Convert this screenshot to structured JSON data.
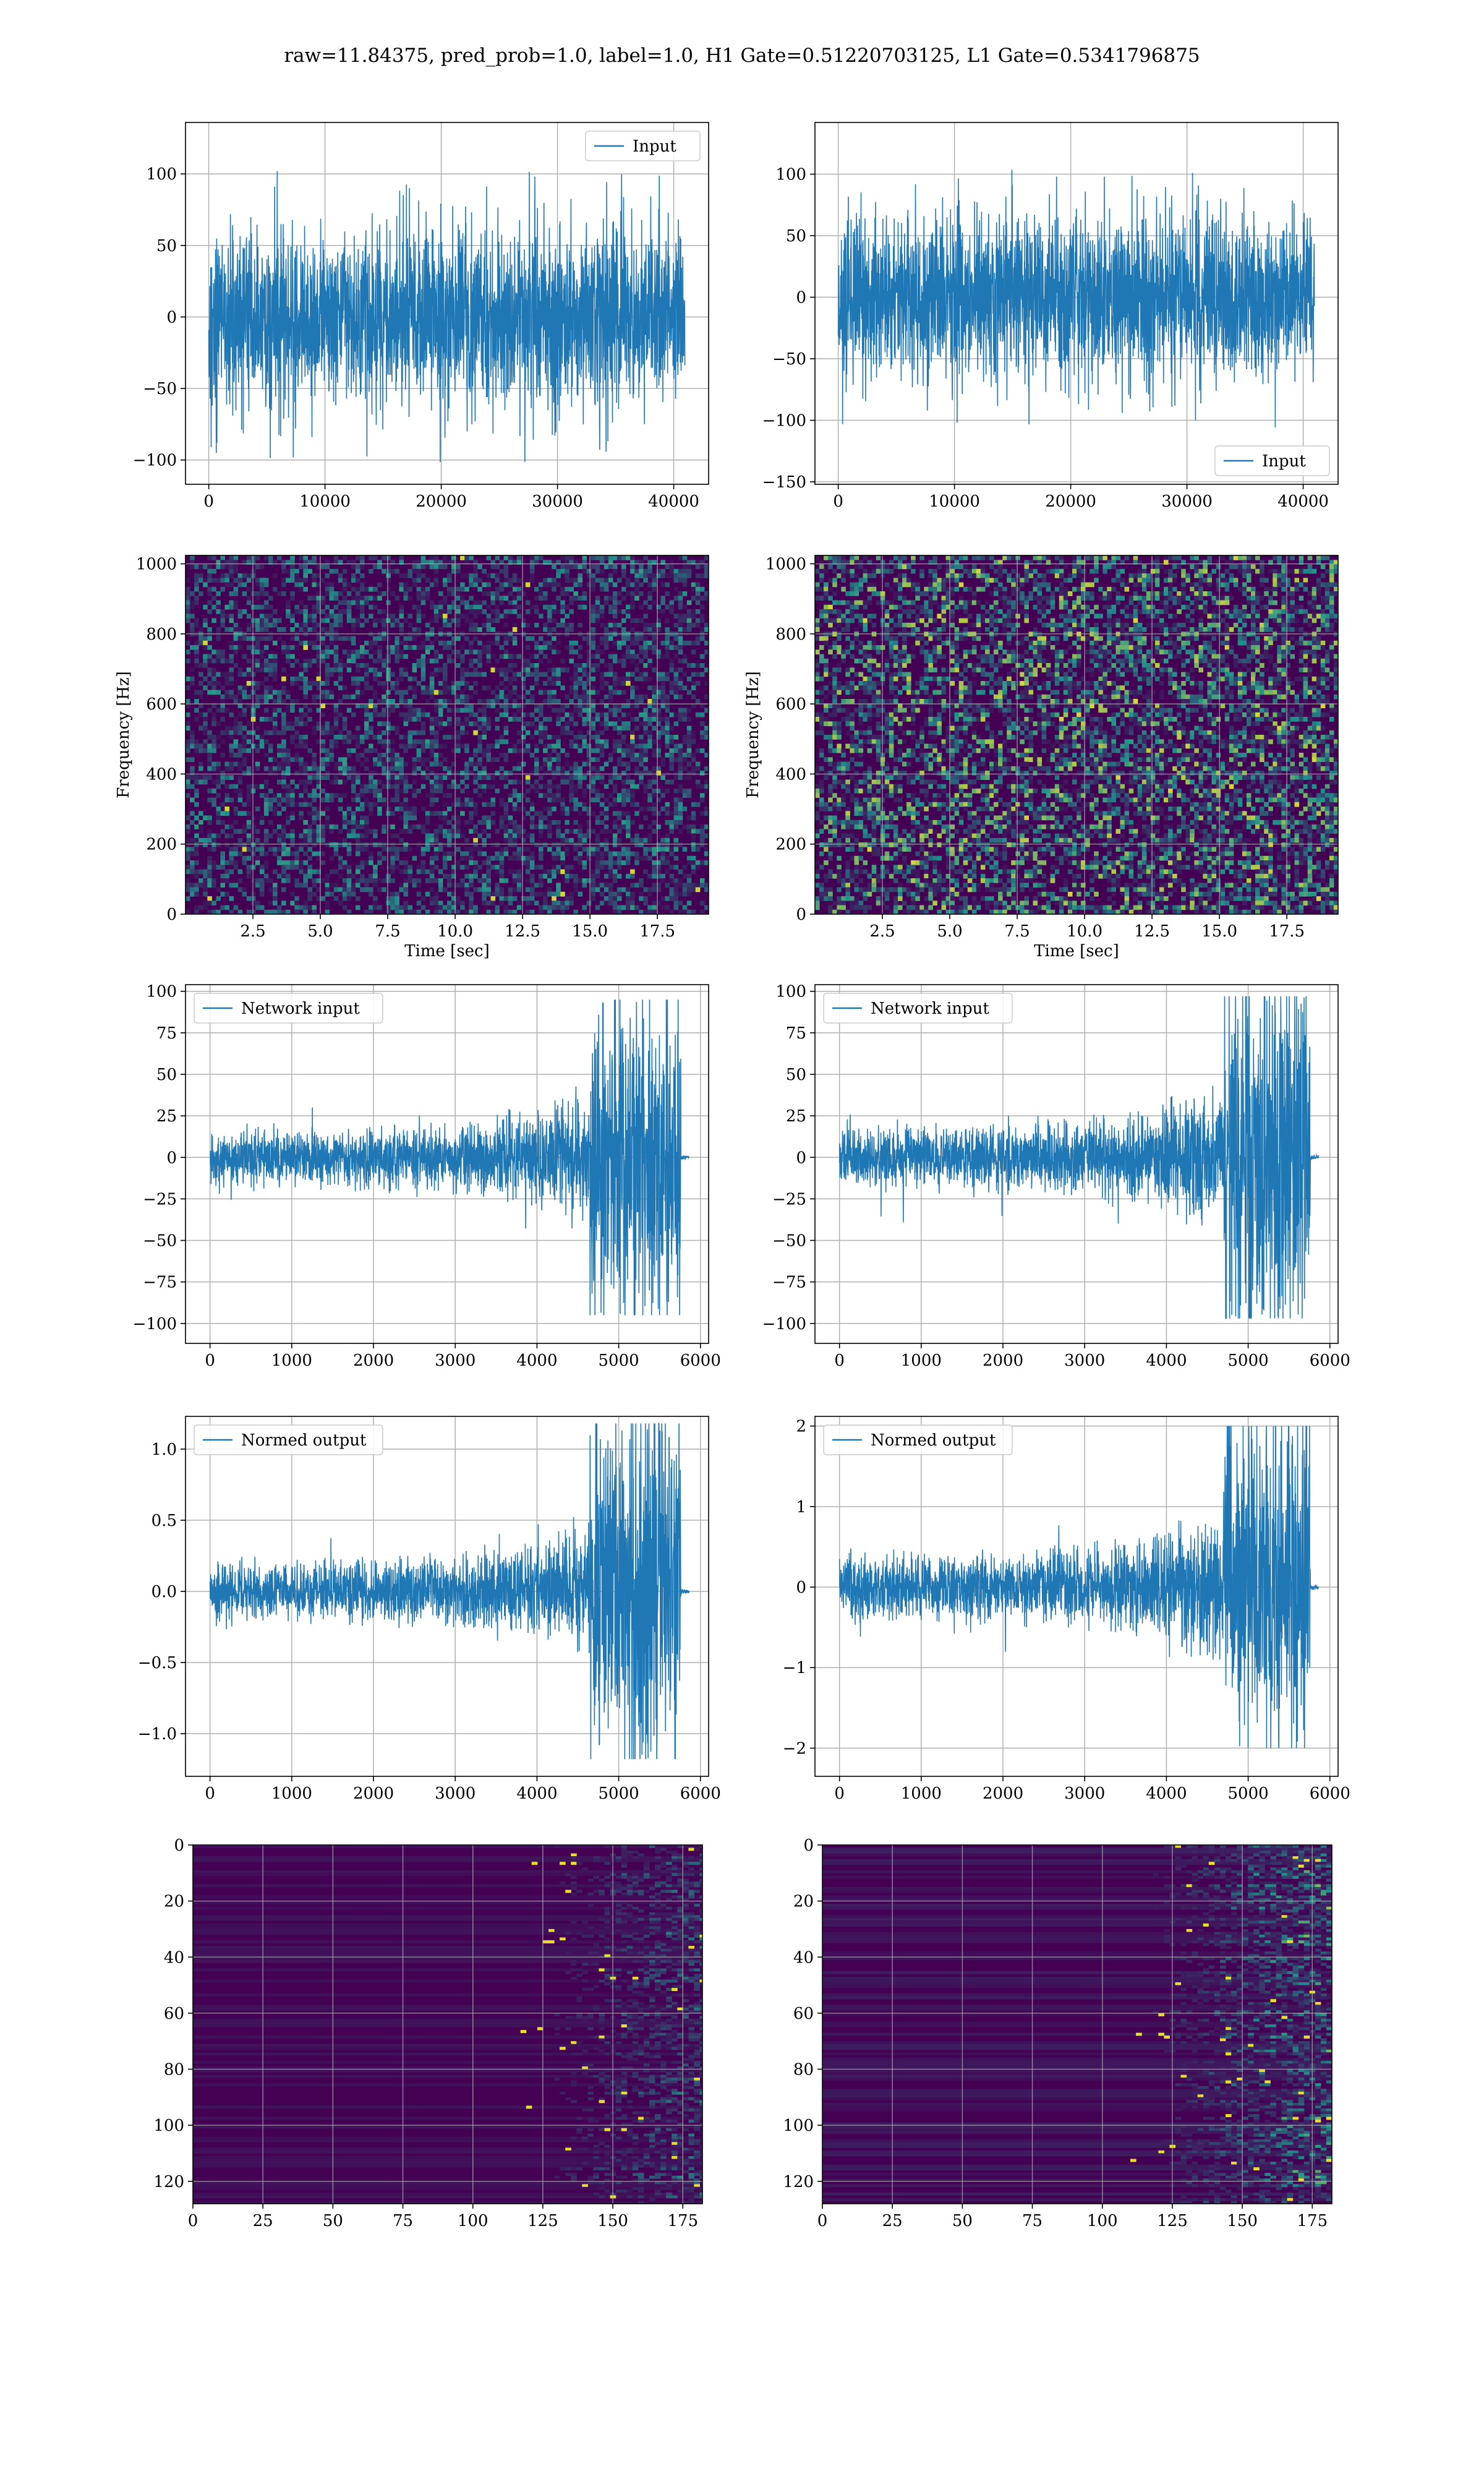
{
  "title": "raw=11.84375, pred_prob=1.0, label=1.0, H1 Gate=0.51220703125, L1 Gate=0.5341796875",
  "colors": {
    "line": "#1f77b4",
    "grid": "#b0b0b0",
    "viridis_low": "#440154",
    "viridis_mid": "#21918c",
    "viridis_high": "#fde725"
  },
  "chart_data": [
    {
      "id": "input-h1",
      "type": "line",
      "signal": "noise",
      "series": [
        {
          "name": "Input"
        }
      ],
      "legend": "top-right",
      "xlim": [
        -2000,
        43000
      ],
      "ylim": [
        -117,
        136
      ],
      "xticks": [
        0,
        10000,
        20000,
        30000,
        40000
      ],
      "xticklabels": [
        "0",
        "10000",
        "20000",
        "30000",
        "40000"
      ],
      "yticks": [
        -100,
        -50,
        0,
        50,
        100
      ],
      "yticklabels": [
        "−100",
        "−50",
        "0",
        "50",
        "100"
      ],
      "data_range": [
        0,
        40960
      ],
      "spread": 30,
      "peak_max": 128,
      "peak_min": -112,
      "grid": true
    },
    {
      "id": "input-l1",
      "type": "line",
      "signal": "noise",
      "series": [
        {
          "name": "Input"
        }
      ],
      "legend": "bottom-right",
      "xlim": [
        -2000,
        43000
      ],
      "ylim": [
        -152,
        142
      ],
      "xticks": [
        0,
        10000,
        20000,
        30000,
        40000
      ],
      "xticklabels": [
        "0",
        "10000",
        "20000",
        "30000",
        "40000"
      ],
      "yticks": [
        -150,
        -100,
        -50,
        0,
        50,
        100
      ],
      "yticklabels": [
        "−150",
        "−100",
        "−50",
        "0",
        "50",
        "100"
      ],
      "data_range": [
        0,
        40960
      ],
      "spread": 32,
      "peak_max": 132,
      "peak_min": -137,
      "grid": true
    },
    {
      "id": "spectrogram-h1",
      "type": "heatmap",
      "style": "spectrogram",
      "ylabel": "Frequency [Hz]",
      "xlabel": "Time [sec]",
      "xlim": [
        0,
        19.4
      ],
      "ylim": [
        0,
        1024
      ],
      "xticks": [
        2.5,
        5.0,
        7.5,
        10.0,
        12.5,
        15.0,
        17.5
      ],
      "xticklabels": [
        "2.5",
        "5.0",
        "7.5",
        "10.0",
        "12.5",
        "15.0",
        "17.5"
      ],
      "yticks": [
        0,
        200,
        400,
        600,
        800,
        1000
      ],
      "yticklabels": [
        "0",
        "200",
        "400",
        "600",
        "800",
        "1000"
      ],
      "intensity": 0.55,
      "grid": true
    },
    {
      "id": "spectrogram-l1",
      "type": "heatmap",
      "style": "spectrogram",
      "ylabel": "Frequency [Hz]",
      "xlabel": "Time [sec]",
      "xlim": [
        0,
        19.4
      ],
      "ylim": [
        0,
        1024
      ],
      "xticks": [
        2.5,
        5.0,
        7.5,
        10.0,
        12.5,
        15.0,
        17.5
      ],
      "xticklabels": [
        "2.5",
        "5.0",
        "7.5",
        "10.0",
        "12.5",
        "15.0",
        "17.5"
      ],
      "yticks": [
        0,
        200,
        400,
        600,
        800,
        1000
      ],
      "yticklabels": [
        "0",
        "200",
        "400",
        "600",
        "800",
        "1000"
      ],
      "intensity": 0.85,
      "grid": true
    },
    {
      "id": "network-input-h1",
      "type": "line",
      "signal": "chirp",
      "series": [
        {
          "name": "Network input"
        }
      ],
      "legend": "top-left",
      "xlim": [
        -300,
        6100
      ],
      "ylim": [
        -112,
        104
      ],
      "xticks": [
        0,
        1000,
        2000,
        3000,
        4000,
        5000,
        6000
      ],
      "xticklabels": [
        "0",
        "1000",
        "2000",
        "3000",
        "4000",
        "5000",
        "6000"
      ],
      "yticks": [
        -100,
        -75,
        -50,
        -25,
        0,
        25,
        50,
        75,
        100
      ],
      "yticklabels": [
        "−100",
        "−75",
        "−50",
        "−25",
        "0",
        "25",
        "50",
        "75",
        "100"
      ],
      "data_end": 5760,
      "tail_end": 5860,
      "base_amp": 12,
      "burst_start": 4650,
      "burst_amp": 95,
      "grid": true
    },
    {
      "id": "network-input-l1",
      "type": "line",
      "signal": "chirp",
      "series": [
        {
          "name": "Network input"
        }
      ],
      "legend": "top-left",
      "xlim": [
        -300,
        6100
      ],
      "ylim": [
        -112,
        104
      ],
      "xticks": [
        0,
        1000,
        2000,
        3000,
        4000,
        5000,
        6000
      ],
      "xticklabels": [
        "0",
        "1000",
        "2000",
        "3000",
        "4000",
        "5000",
        "6000"
      ],
      "yticks": [
        -100,
        -75,
        -50,
        -25,
        0,
        25,
        50,
        75,
        100
      ],
      "yticklabels": [
        "−100",
        "−75",
        "−50",
        "−25",
        "0",
        "25",
        "50",
        "75",
        "100"
      ],
      "data_end": 5760,
      "tail_end": 5860,
      "base_amp": 13,
      "burst_start": 4700,
      "burst_amp": 97,
      "grid": true
    },
    {
      "id": "normed-output-h1",
      "type": "line",
      "signal": "chirp",
      "series": [
        {
          "name": "Normed output"
        }
      ],
      "legend": "top-left",
      "xlim": [
        -300,
        6100
      ],
      "ylim": [
        -1.3,
        1.23
      ],
      "xticks": [
        0,
        1000,
        2000,
        3000,
        4000,
        5000,
        6000
      ],
      "xticklabels": [
        "0",
        "1000",
        "2000",
        "3000",
        "4000",
        "5000",
        "6000"
      ],
      "yticks": [
        -1.0,
        -0.5,
        0.0,
        0.5,
        1.0
      ],
      "yticklabels": [
        "−1.0",
        "−0.5",
        "0.0",
        "0.5",
        "1.0"
      ],
      "data_end": 5760,
      "tail_end": 5860,
      "base_amp": 0.14,
      "burst_start": 4650,
      "burst_amp": 1.18,
      "grid": true
    },
    {
      "id": "normed-output-l1",
      "type": "line",
      "signal": "chirp",
      "series": [
        {
          "name": "Normed output"
        }
      ],
      "legend": "top-left",
      "xlim": [
        -300,
        6100
      ],
      "ylim": [
        -2.35,
        2.12
      ],
      "xticks": [
        0,
        1000,
        2000,
        3000,
        4000,
        5000,
        6000
      ],
      "xticklabels": [
        "0",
        "1000",
        "2000",
        "3000",
        "4000",
        "5000",
        "6000"
      ],
      "yticks": [
        -2,
        -1,
        0,
        1,
        2
      ],
      "yticklabels": [
        "−2",
        "−1",
        "0",
        "1",
        "2"
      ],
      "data_end": 5760,
      "tail_end": 5860,
      "base_amp": 0.28,
      "burst_start": 4700,
      "burst_amp": 2.0,
      "grid": true
    },
    {
      "id": "feature-map-h1",
      "type": "heatmap",
      "style": "featuremap",
      "xlim": [
        0,
        182
      ],
      "ylim": [
        128,
        0
      ],
      "xticks": [
        0,
        25,
        50,
        75,
        100,
        125,
        150,
        175
      ],
      "xticklabels": [
        "0",
        "25",
        "50",
        "75",
        "100",
        "125",
        "150",
        "175"
      ],
      "yticks": [
        0,
        20,
        40,
        60,
        80,
        100,
        120
      ],
      "yticklabels": [
        "0",
        "20",
        "40",
        "60",
        "80",
        "100",
        "120"
      ],
      "activation_start": 115,
      "intensity": 0.55,
      "grid": true
    },
    {
      "id": "feature-map-l1",
      "type": "heatmap",
      "style": "featuremap",
      "xlim": [
        0,
        182
      ],
      "ylim": [
        128,
        0
      ],
      "xticks": [
        0,
        25,
        50,
        75,
        100,
        125,
        150,
        175
      ],
      "xticklabels": [
        "0",
        "25",
        "50",
        "75",
        "100",
        "125",
        "150",
        "175"
      ],
      "yticks": [
        0,
        20,
        40,
        60,
        80,
        100,
        120
      ],
      "yticklabels": [
        "0",
        "20",
        "40",
        "60",
        "80",
        "100",
        "120"
      ],
      "activation_start": 110,
      "intensity": 0.85,
      "grid": true
    }
  ]
}
